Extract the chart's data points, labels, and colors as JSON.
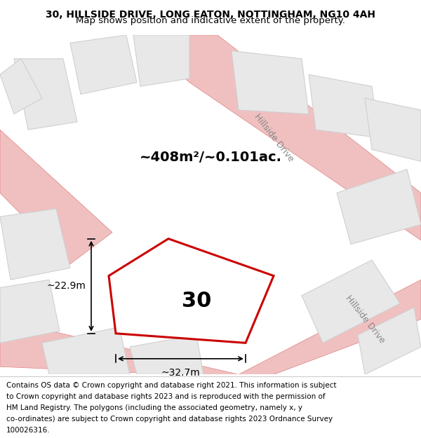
{
  "title_line1": "30, HILLSIDE DRIVE, LONG EATON, NOTTINGHAM, NG10 4AH",
  "title_line2": "Map shows position and indicative extent of the property.",
  "footer_lines": [
    "Contains OS data © Crown copyright and database right 2021. This information is subject",
    "to Crown copyright and database rights 2023 and is reproduced with the permission of",
    "HM Land Registry. The polygons (including the associated geometry, namely x, y",
    "co-ordinates) are subject to Crown copyright and database rights 2023 Ordnance Survey",
    "100026316."
  ],
  "map_bg_color": "#f5f5f5",
  "plot_outline_color": "#cc0000",
  "road_color": "#f0c0c0",
  "road_stroke": "#e08080",
  "building_color": "#e8e8e8",
  "building_stroke": "#d0d0d0",
  "label_30": "30",
  "area_text": "~408m²/~0.101ac.",
  "dim_width": "~32.7m",
  "dim_height": "~22.9m",
  "road_label1": "Hillside Drive",
  "road_label2": "Hillside Drive",
  "title_fontsize": 10,
  "footer_fontsize": 7.5,
  "label_fontsize": 22,
  "area_fontsize": 14,
  "dim_fontsize": 10,
  "road_label_fontsize": 9,
  "road_label_color": "#888888",
  "road_label_rotation": -52
}
